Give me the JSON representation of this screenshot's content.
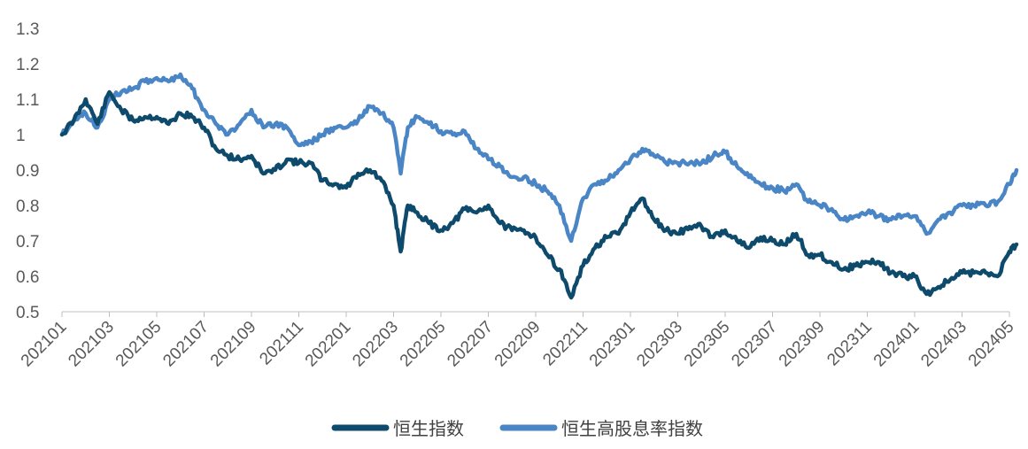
{
  "chart_data": {
    "type": "line",
    "title": "",
    "xlabel": "",
    "ylabel": "",
    "ylim": [
      0.5,
      1.3
    ],
    "y_ticks": [
      "0.5",
      "0.6",
      "0.7",
      "0.8",
      "0.9",
      "1",
      "1.1",
      "1.2",
      "1.3"
    ],
    "x_ticks": [
      "202101",
      "202103",
      "202105",
      "202107",
      "202109",
      "202111",
      "202201",
      "202203",
      "202205",
      "202207",
      "202209",
      "202211",
      "202301",
      "202303",
      "202305",
      "202307",
      "202309",
      "202311",
      "202401",
      "202403",
      "202405"
    ],
    "grid": false,
    "legend_position": "bottom",
    "series": [
      {
        "name": "恒生指数",
        "color": "#0d4a6b",
        "points": [
          [
            "202101",
            1.0
          ],
          [
            "202101.5",
            1.04
          ],
          [
            "202102",
            1.1
          ],
          [
            "202102.5",
            1.03
          ],
          [
            "202103",
            1.12
          ],
          [
            "202103.5",
            1.07
          ],
          [
            "202104",
            1.04
          ],
          [
            "202104.5",
            1.05
          ],
          [
            "202105",
            1.05
          ],
          [
            "202105.5",
            1.03
          ],
          [
            "202106",
            1.06
          ],
          [
            "202106.5",
            1.05
          ],
          [
            "202107",
            1.02
          ],
          [
            "202107.5",
            0.96
          ],
          [
            "202108",
            0.94
          ],
          [
            "202108.5",
            0.93
          ],
          [
            "202109",
            0.94
          ],
          [
            "202109.5",
            0.89
          ],
          [
            "202110",
            0.9
          ],
          [
            "202110.5",
            0.93
          ],
          [
            "202111",
            0.92
          ],
          [
            "202111.5",
            0.92
          ],
          [
            "202112",
            0.87
          ],
          [
            "202112.5",
            0.86
          ],
          [
            "202201",
            0.85
          ],
          [
            "202201.5",
            0.89
          ],
          [
            "202202",
            0.9
          ],
          [
            "202202.5",
            0.87
          ],
          [
            "202203",
            0.8
          ],
          [
            "202203.3",
            0.67
          ],
          [
            "202203.6",
            0.8
          ],
          [
            "202204",
            0.78
          ],
          [
            "202204.5",
            0.75
          ],
          [
            "202205",
            0.73
          ],
          [
            "202205.5",
            0.75
          ],
          [
            "202206",
            0.79
          ],
          [
            "202206.5",
            0.78
          ],
          [
            "202207",
            0.8
          ],
          [
            "202207.5",
            0.75
          ],
          [
            "202208",
            0.73
          ],
          [
            "202208.5",
            0.73
          ],
          [
            "202209",
            0.71
          ],
          [
            "202209.5",
            0.66
          ],
          [
            "202210",
            0.62
          ],
          [
            "202210.5",
            0.54
          ],
          [
            "202211",
            0.63
          ],
          [
            "202211.5",
            0.68
          ],
          [
            "202212",
            0.71
          ],
          [
            "202212.5",
            0.72
          ],
          [
            "202301",
            0.78
          ],
          [
            "202301.5",
            0.82
          ],
          [
            "202302",
            0.76
          ],
          [
            "202302.5",
            0.73
          ],
          [
            "202303",
            0.72
          ],
          [
            "202303.5",
            0.74
          ],
          [
            "202304",
            0.74
          ],
          [
            "202304.5",
            0.71
          ],
          [
            "202305",
            0.73
          ],
          [
            "202305.5",
            0.7
          ],
          [
            "202306",
            0.68
          ],
          [
            "202306.5",
            0.71
          ],
          [
            "202307",
            0.7
          ],
          [
            "202307.5",
            0.69
          ],
          [
            "202308",
            0.72
          ],
          [
            "202308.5",
            0.66
          ],
          [
            "202309",
            0.66
          ],
          [
            "202309.5",
            0.64
          ],
          [
            "202310",
            0.62
          ],
          [
            "202310.5",
            0.63
          ],
          [
            "202311",
            0.64
          ],
          [
            "202311.5",
            0.64
          ],
          [
            "202312",
            0.61
          ],
          [
            "202312.5",
            0.6
          ],
          [
            "202401",
            0.6
          ],
          [
            "202401.5",
            0.55
          ],
          [
            "202402",
            0.57
          ],
          [
            "202402.5",
            0.59
          ],
          [
            "202403",
            0.61
          ],
          [
            "202403.5",
            0.61
          ],
          [
            "202404",
            0.61
          ],
          [
            "202404.5",
            0.6
          ],
          [
            "202405",
            0.67
          ],
          [
            "202405.3",
            0.69
          ]
        ]
      },
      {
        "name": "恒生高股息率指数",
        "color": "#4a86c5",
        "points": [
          [
            "202101",
            1.0
          ],
          [
            "202101.5",
            1.04
          ],
          [
            "202102",
            1.06
          ],
          [
            "202102.5",
            1.02
          ],
          [
            "202103",
            1.1
          ],
          [
            "202103.5",
            1.12
          ],
          [
            "202104",
            1.13
          ],
          [
            "202104.5",
            1.15
          ],
          [
            "202105",
            1.16
          ],
          [
            "202105.5",
            1.15
          ],
          [
            "202106",
            1.17
          ],
          [
            "202106.5",
            1.13
          ],
          [
            "202107",
            1.07
          ],
          [
            "202107.5",
            1.03
          ],
          [
            "202108",
            1.0
          ],
          [
            "202108.5",
            1.03
          ],
          [
            "202109",
            1.07
          ],
          [
            "202109.5",
            1.02
          ],
          [
            "202110",
            1.03
          ],
          [
            "202110.5",
            1.02
          ],
          [
            "202111",
            0.97
          ],
          [
            "202111.5",
            0.98
          ],
          [
            "202112",
            1.0
          ],
          [
            "202112.5",
            1.02
          ],
          [
            "202201",
            1.02
          ],
          [
            "202201.5",
            1.04
          ],
          [
            "202202",
            1.08
          ],
          [
            "202202.5",
            1.06
          ],
          [
            "202203",
            1.02
          ],
          [
            "202203.3",
            0.89
          ],
          [
            "202203.6",
            1.02
          ],
          [
            "202204",
            1.05
          ],
          [
            "202204.5",
            1.03
          ],
          [
            "202205",
            1.01
          ],
          [
            "202205.5",
            1.0
          ],
          [
            "202206",
            1.01
          ],
          [
            "202206.5",
            0.96
          ],
          [
            "202207",
            0.93
          ],
          [
            "202207.5",
            0.91
          ],
          [
            "202208",
            0.88
          ],
          [
            "202208.5",
            0.88
          ],
          [
            "202209",
            0.86
          ],
          [
            "202209.5",
            0.84
          ],
          [
            "202210",
            0.8
          ],
          [
            "202210.5",
            0.7
          ],
          [
            "202211",
            0.82
          ],
          [
            "202211.5",
            0.86
          ],
          [
            "202212",
            0.87
          ],
          [
            "202212.5",
            0.9
          ],
          [
            "202301",
            0.93
          ],
          [
            "202301.5",
            0.96
          ],
          [
            "202302",
            0.94
          ],
          [
            "202302.5",
            0.92
          ],
          [
            "202303",
            0.92
          ],
          [
            "202303.5",
            0.92
          ],
          [
            "202304",
            0.92
          ],
          [
            "202304.5",
            0.94
          ],
          [
            "202305",
            0.95
          ],
          [
            "202305.5",
            0.91
          ],
          [
            "202306",
            0.88
          ],
          [
            "202306.5",
            0.86
          ],
          [
            "202307",
            0.85
          ],
          [
            "202307.5",
            0.84
          ],
          [
            "202308",
            0.86
          ],
          [
            "202308.5",
            0.81
          ],
          [
            "202309",
            0.8
          ],
          [
            "202309.5",
            0.79
          ],
          [
            "202310",
            0.76
          ],
          [
            "202310.5",
            0.77
          ],
          [
            "202311",
            0.78
          ],
          [
            "202311.5",
            0.77
          ],
          [
            "202312",
            0.76
          ],
          [
            "202312.5",
            0.77
          ],
          [
            "202401",
            0.77
          ],
          [
            "202401.5",
            0.72
          ],
          [
            "202402",
            0.76
          ],
          [
            "202402.5",
            0.78
          ],
          [
            "202403",
            0.8
          ],
          [
            "202403.5",
            0.8
          ],
          [
            "202404",
            0.8
          ],
          [
            "202404.5",
            0.81
          ],
          [
            "202405",
            0.86
          ],
          [
            "202405.3",
            0.9
          ]
        ]
      }
    ]
  }
}
